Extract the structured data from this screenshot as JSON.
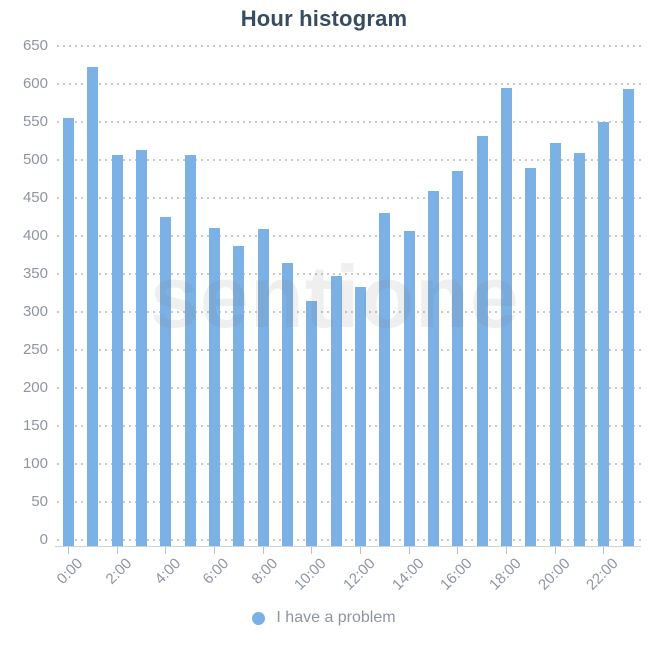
{
  "title": "Hour histogram",
  "watermark": "sentione",
  "legend": {
    "label": "I have a problem",
    "dot_color": "#79b1e6"
  },
  "colors": {
    "bar": "#7cb1e6",
    "title_text": "#374c61",
    "axis_label_text": "#8d95a3",
    "gridline_dots": "#c9c9c9",
    "axis_line": "#ccd4dc"
  },
  "chart_data": {
    "type": "bar",
    "title": "Hour histogram",
    "series_name": "I have a problem",
    "categories": [
      "0:00",
      "1:00",
      "2:00",
      "3:00",
      "4:00",
      "5:00",
      "6:00",
      "7:00",
      "8:00",
      "9:00",
      "10:00",
      "11:00",
      "12:00",
      "13:00",
      "14:00",
      "15:00",
      "16:00",
      "17:00",
      "18:00",
      "19:00",
      "20:00",
      "21:00",
      "22:00",
      "23:00"
    ],
    "values": [
      555,
      623,
      507,
      513,
      425,
      506,
      410,
      387,
      409,
      365,
      315,
      348,
      333,
      430,
      407,
      459,
      485,
      531,
      595,
      490,
      522,
      509,
      550,
      594
    ],
    "xlabel": "",
    "ylabel": "",
    "ylim": [
      0,
      650
    ],
    "y_tick_step": 50,
    "y_tick_labels": [
      "0",
      "50",
      "100",
      "150",
      "200",
      "250",
      "300",
      "350",
      "400",
      "450",
      "500",
      "550",
      "600",
      "650"
    ],
    "x_tick_every": 2,
    "x_tick_labels_shown": [
      "0:00",
      "2:00",
      "4:00",
      "6:00",
      "8:00",
      "10:00",
      "12:00",
      "14:00",
      "16:00",
      "18:00",
      "20:00",
      "22:00"
    ],
    "grid": "dotted-horizontal",
    "legend_position": "bottom-center",
    "bar_color": "#7cb1e6"
  }
}
